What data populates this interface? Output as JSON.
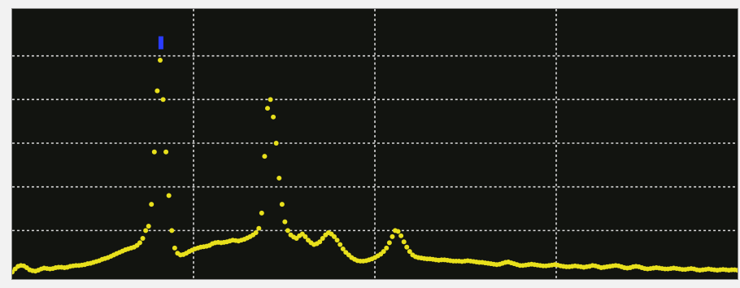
{
  "display": {
    "background_color": "#121410",
    "grid_color": "#d8d8d8",
    "trace_color": "#e8e01c",
    "marker_color": "#2a3cff",
    "grid_divisions_x": 4,
    "grid_divisions_y": 6,
    "grid": true
  },
  "chart_data": {
    "type": "scatter",
    "xlim": [
      0,
      100
    ],
    "ylim": [
      0,
      6
    ],
    "grid": true,
    "marker": {
      "x": 20.5,
      "y": 5.3
    },
    "series": [
      {
        "points": [
          [
            0.0,
            0.05
          ],
          [
            0.4,
            0.12
          ],
          [
            0.8,
            0.18
          ],
          [
            1.2,
            0.2
          ],
          [
            1.6,
            0.19
          ],
          [
            2.0,
            0.15
          ],
          [
            2.4,
            0.1
          ],
          [
            2.8,
            0.08
          ],
          [
            3.2,
            0.07
          ],
          [
            3.6,
            0.09
          ],
          [
            4.0,
            0.12
          ],
          [
            4.4,
            0.14
          ],
          [
            4.8,
            0.13
          ],
          [
            5.2,
            0.12
          ],
          [
            5.6,
            0.13
          ],
          [
            6.0,
            0.15
          ],
          [
            6.4,
            0.16
          ],
          [
            6.8,
            0.16
          ],
          [
            7.2,
            0.15
          ],
          [
            7.6,
            0.16
          ],
          [
            8.0,
            0.18
          ],
          [
            8.4,
            0.19
          ],
          [
            8.8,
            0.2
          ],
          [
            9.2,
            0.2
          ],
          [
            9.6,
            0.21
          ],
          [
            10.0,
            0.22
          ],
          [
            10.4,
            0.24
          ],
          [
            10.8,
            0.25
          ],
          [
            11.2,
            0.27
          ],
          [
            11.6,
            0.29
          ],
          [
            12.0,
            0.31
          ],
          [
            12.4,
            0.34
          ],
          [
            12.8,
            0.36
          ],
          [
            13.2,
            0.38
          ],
          [
            13.6,
            0.41
          ],
          [
            14.0,
            0.44
          ],
          [
            14.4,
            0.47
          ],
          [
            14.8,
            0.5
          ],
          [
            15.2,
            0.53
          ],
          [
            15.6,
            0.56
          ],
          [
            16.0,
            0.58
          ],
          [
            16.4,
            0.6
          ],
          [
            16.8,
            0.62
          ],
          [
            17.2,
            0.66
          ],
          [
            17.6,
            0.72
          ],
          [
            18.0,
            0.82
          ],
          [
            18.4,
            1.0
          ],
          [
            18.8,
            1.1
          ],
          [
            19.2,
            1.6
          ],
          [
            19.6,
            2.8
          ],
          [
            20.0,
            4.2
          ],
          [
            20.4,
            4.9
          ],
          [
            20.8,
            4.0
          ],
          [
            21.2,
            2.8
          ],
          [
            21.6,
            1.8
          ],
          [
            22.0,
            1.0
          ],
          [
            22.4,
            0.6
          ],
          [
            22.8,
            0.48
          ],
          [
            23.2,
            0.44
          ],
          [
            23.6,
            0.45
          ],
          [
            24.0,
            0.48
          ],
          [
            24.4,
            0.52
          ],
          [
            24.8,
            0.55
          ],
          [
            25.2,
            0.58
          ],
          [
            25.6,
            0.6
          ],
          [
            26.0,
            0.62
          ],
          [
            26.4,
            0.63
          ],
          [
            26.8,
            0.64
          ],
          [
            27.2,
            0.66
          ],
          [
            27.6,
            0.7
          ],
          [
            28.0,
            0.72
          ],
          [
            28.4,
            0.73
          ],
          [
            28.8,
            0.72
          ],
          [
            29.2,
            0.73
          ],
          [
            29.6,
            0.74
          ],
          [
            30.0,
            0.76
          ],
          [
            30.4,
            0.78
          ],
          [
            30.8,
            0.77
          ],
          [
            31.2,
            0.76
          ],
          [
            31.6,
            0.78
          ],
          [
            32.0,
            0.8
          ],
          [
            32.4,
            0.83
          ],
          [
            32.8,
            0.86
          ],
          [
            33.2,
            0.9
          ],
          [
            33.6,
            0.95
          ],
          [
            34.0,
            1.05
          ],
          [
            34.4,
            1.4
          ],
          [
            34.8,
            2.7
          ],
          [
            35.2,
            3.8
          ],
          [
            35.6,
            4.0
          ],
          [
            36.0,
            3.6
          ],
          [
            36.4,
            3.0
          ],
          [
            36.8,
            2.2
          ],
          [
            37.2,
            1.6
          ],
          [
            37.6,
            1.2
          ],
          [
            38.0,
            1.0
          ],
          [
            38.4,
            0.9
          ],
          [
            38.8,
            0.85
          ],
          [
            39.2,
            0.82
          ],
          [
            39.6,
            0.88
          ],
          [
            40.0,
            0.92
          ],
          [
            40.4,
            0.86
          ],
          [
            40.8,
            0.78
          ],
          [
            41.2,
            0.72
          ],
          [
            41.6,
            0.68
          ],
          [
            42.0,
            0.7
          ],
          [
            42.4,
            0.74
          ],
          [
            42.8,
            0.82
          ],
          [
            43.2,
            0.9
          ],
          [
            43.6,
            0.95
          ],
          [
            44.0,
            0.92
          ],
          [
            44.4,
            0.86
          ],
          [
            44.8,
            0.78
          ],
          [
            45.2,
            0.68
          ],
          [
            45.6,
            0.58
          ],
          [
            46.0,
            0.5
          ],
          [
            46.4,
            0.44
          ],
          [
            46.8,
            0.38
          ],
          [
            47.2,
            0.34
          ],
          [
            47.6,
            0.31
          ],
          [
            48.0,
            0.3
          ],
          [
            48.4,
            0.3
          ],
          [
            48.8,
            0.31
          ],
          [
            49.2,
            0.33
          ],
          [
            49.6,
            0.35
          ],
          [
            50.0,
            0.38
          ],
          [
            50.4,
            0.42
          ],
          [
            50.8,
            0.46
          ],
          [
            51.2,
            0.52
          ],
          [
            51.6,
            0.6
          ],
          [
            52.0,
            0.72
          ],
          [
            52.4,
            0.86
          ],
          [
            52.8,
            1.0
          ],
          [
            53.2,
            0.98
          ],
          [
            53.6,
            0.88
          ],
          [
            54.0,
            0.74
          ],
          [
            54.4,
            0.62
          ],
          [
            54.8,
            0.52
          ],
          [
            55.2,
            0.44
          ],
          [
            55.6,
            0.4
          ],
          [
            56.0,
            0.38
          ],
          [
            56.4,
            0.37
          ],
          [
            56.8,
            0.36
          ],
          [
            57.2,
            0.35
          ],
          [
            57.6,
            0.35
          ],
          [
            58.0,
            0.34
          ],
          [
            58.4,
            0.33
          ],
          [
            58.8,
            0.32
          ],
          [
            59.2,
            0.33
          ],
          [
            59.6,
            0.33
          ],
          [
            60.0,
            0.32
          ],
          [
            60.4,
            0.31
          ],
          [
            60.8,
            0.3
          ],
          [
            61.2,
            0.3
          ],
          [
            61.6,
            0.3
          ],
          [
            62.0,
            0.29
          ],
          [
            62.4,
            0.3
          ],
          [
            62.8,
            0.31
          ],
          [
            63.2,
            0.3
          ],
          [
            63.6,
            0.29
          ],
          [
            64.0,
            0.28
          ],
          [
            64.4,
            0.27
          ],
          [
            64.8,
            0.27
          ],
          [
            65.2,
            0.26
          ],
          [
            65.6,
            0.25
          ],
          [
            66.0,
            0.24
          ],
          [
            66.4,
            0.23
          ],
          [
            66.8,
            0.22
          ],
          [
            67.2,
            0.23
          ],
          [
            67.6,
            0.25
          ],
          [
            68.0,
            0.27
          ],
          [
            68.4,
            0.28
          ],
          [
            68.8,
            0.26
          ],
          [
            69.2,
            0.24
          ],
          [
            69.6,
            0.22
          ],
          [
            70.0,
            0.2
          ],
          [
            70.4,
            0.2
          ],
          [
            70.8,
            0.21
          ],
          [
            71.2,
            0.22
          ],
          [
            71.6,
            0.23
          ],
          [
            72.0,
            0.22
          ],
          [
            72.4,
            0.21
          ],
          [
            72.8,
            0.2
          ],
          [
            73.2,
            0.19
          ],
          [
            73.6,
            0.19
          ],
          [
            74.0,
            0.2
          ],
          [
            74.4,
            0.21
          ],
          [
            74.8,
            0.22
          ],
          [
            75.2,
            0.21
          ],
          [
            75.6,
            0.19
          ],
          [
            76.0,
            0.18
          ],
          [
            76.4,
            0.17
          ],
          [
            76.8,
            0.17
          ],
          [
            77.2,
            0.18
          ],
          [
            77.6,
            0.19
          ],
          [
            78.0,
            0.18
          ],
          [
            78.4,
            0.17
          ],
          [
            78.8,
            0.16
          ],
          [
            79.2,
            0.17
          ],
          [
            79.6,
            0.18
          ],
          [
            80.0,
            0.2
          ],
          [
            80.4,
            0.19
          ],
          [
            80.8,
            0.17
          ],
          [
            81.2,
            0.15
          ],
          [
            81.6,
            0.16
          ],
          [
            82.0,
            0.17
          ],
          [
            82.4,
            0.18
          ],
          [
            82.8,
            0.19
          ],
          [
            83.2,
            0.2
          ],
          [
            83.6,
            0.19
          ],
          [
            84.0,
            0.17
          ],
          [
            84.4,
            0.15
          ],
          [
            84.8,
            0.14
          ],
          [
            85.2,
            0.15
          ],
          [
            85.6,
            0.17
          ],
          [
            86.0,
            0.18
          ],
          [
            86.4,
            0.17
          ],
          [
            86.8,
            0.15
          ],
          [
            87.2,
            0.13
          ],
          [
            87.6,
            0.12
          ],
          [
            88.0,
            0.13
          ],
          [
            88.4,
            0.14
          ],
          [
            88.8,
            0.15
          ],
          [
            89.2,
            0.14
          ],
          [
            89.6,
            0.13
          ],
          [
            90.0,
            0.12
          ],
          [
            90.4,
            0.12
          ],
          [
            90.8,
            0.13
          ],
          [
            91.2,
            0.14
          ],
          [
            91.6,
            0.13
          ],
          [
            92.0,
            0.12
          ],
          [
            92.4,
            0.11
          ],
          [
            92.8,
            0.11
          ],
          [
            93.2,
            0.12
          ],
          [
            93.6,
            0.13
          ],
          [
            94.0,
            0.12
          ],
          [
            94.4,
            0.1
          ],
          [
            94.8,
            0.09
          ],
          [
            95.2,
            0.1
          ],
          [
            95.6,
            0.11
          ],
          [
            96.0,
            0.12
          ],
          [
            96.4,
            0.11
          ],
          [
            96.8,
            0.1
          ],
          [
            97.2,
            0.09
          ],
          [
            97.6,
            0.1
          ],
          [
            98.0,
            0.11
          ],
          [
            98.4,
            0.1
          ],
          [
            98.8,
            0.09
          ],
          [
            99.2,
            0.1
          ],
          [
            99.6,
            0.1
          ],
          [
            100.0,
            0.09
          ]
        ]
      }
    ]
  }
}
